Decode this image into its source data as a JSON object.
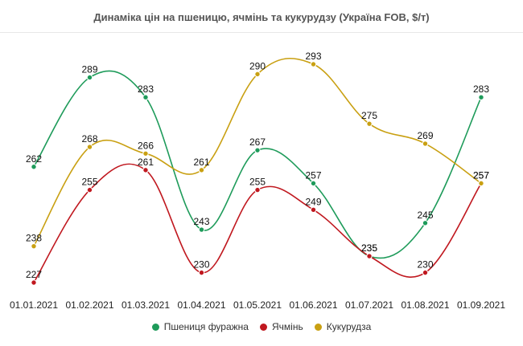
{
  "chart_data": {
    "type": "line",
    "title": "Динаміка цін на пшеницю, ячмінь та кукурудзу (Україна FOB, $/т)",
    "categories": [
      "01.01.2021",
      "01.02.2021",
      "01.03.2021",
      "01.04.2021",
      "01.05.2021",
      "01.06.2021",
      "01.07.2021",
      "01.08.2021",
      "01.09.2021"
    ],
    "series": [
      {
        "name": "Пшениця фуражна",
        "color": "#1e9b5a",
        "values": [
          262,
          289,
          283,
          243,
          267,
          257,
          235,
          245,
          283
        ]
      },
      {
        "name": "Ячмінь",
        "color": "#c0181f",
        "values": [
          227,
          255,
          261,
          230,
          255,
          249,
          235,
          230,
          257
        ]
      },
      {
        "name": "Кукурудза",
        "color": "#c9a012",
        "values": [
          238,
          268,
          266,
          261,
          290,
          293,
          275,
          269,
          257
        ]
      }
    ],
    "ylim": [
      227,
      293
    ],
    "grid": false,
    "legend": "bottom"
  }
}
